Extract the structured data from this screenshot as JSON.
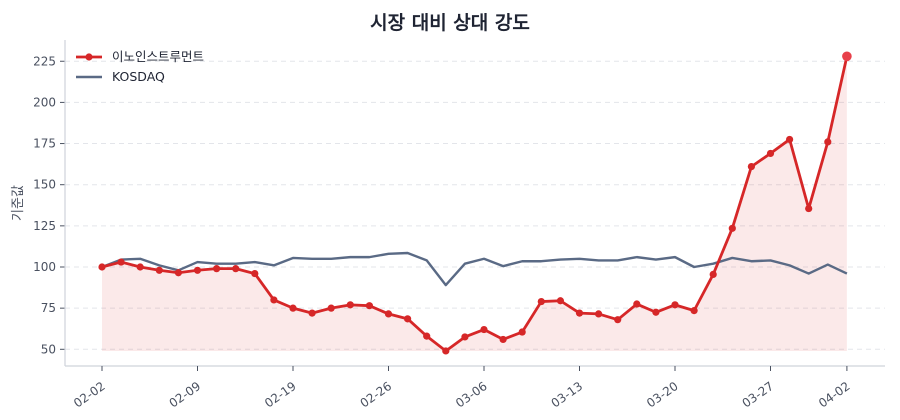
{
  "chart_data": {
    "type": "line",
    "title": "시장 대비 상대 강도",
    "xlabel": "",
    "ylabel": "기준값",
    "ylim": [
      40,
      238
    ],
    "yticks": [
      50,
      75,
      100,
      125,
      150,
      175,
      200,
      225
    ],
    "xtick_labels": [
      "02-02",
      "02-09",
      "02-19",
      "02-26",
      "03-06",
      "03-13",
      "03-20",
      "03-27",
      "04-02"
    ],
    "xtick_indices": [
      0,
      5,
      10,
      15,
      20,
      25,
      30,
      35,
      39
    ],
    "grid": "horizontal dashed",
    "legend_position": "upper left",
    "series": [
      {
        "name": "이노인스트루먼트",
        "color": "#d62728",
        "marker": "circle",
        "fill": true,
        "values": [
          100,
          103,
          100,
          98,
          96.5,
          98,
          99,
          99,
          96,
          80,
          75,
          72,
          75,
          77,
          76.5,
          71.5,
          68.5,
          58,
          49,
          57.5,
          62,
          56,
          60.5,
          79,
          79.5,
          72,
          71.5,
          68,
          77.5,
          72.5,
          77,
          73.5,
          95.5,
          123.5,
          161,
          169,
          177.5,
          135.5,
          176,
          228
        ]
      },
      {
        "name": "KOSDAQ",
        "color": "#5a6a85",
        "marker": "none",
        "fill": false,
        "values": [
          100,
          104.5,
          105,
          101,
          98,
          103,
          102,
          102,
          103,
          101,
          105.5,
          105,
          105,
          106,
          106,
          108,
          108.5,
          104,
          89,
          102,
          105,
          100.5,
          103.5,
          103.5,
          104.5,
          105,
          104,
          104,
          106,
          104.5,
          106,
          100,
          102,
          105.5,
          103.5,
          104,
          101,
          96,
          101.5,
          96
        ]
      }
    ]
  }
}
